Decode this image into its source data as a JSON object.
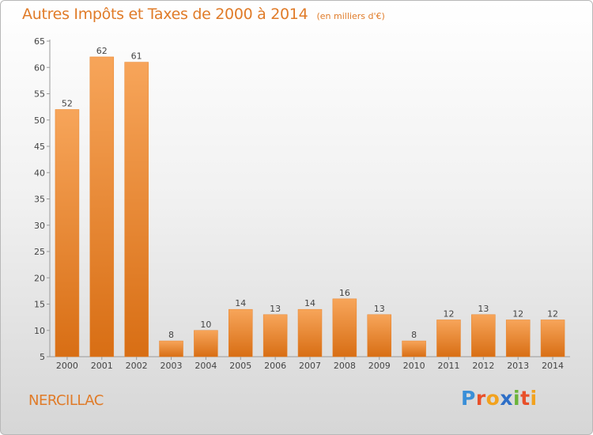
{
  "chart_data": {
    "type": "bar",
    "title": "Autres Impôts et Taxes de 2000 à 2014",
    "subtitle": "(en milliers d'€)",
    "categories": [
      "2000",
      "2001",
      "2002",
      "2003",
      "2004",
      "2005",
      "2006",
      "2007",
      "2008",
      "2009",
      "2010",
      "2011",
      "2012",
      "2013",
      "2014"
    ],
    "values": [
      52,
      62,
      61,
      8,
      10,
      14,
      13,
      14,
      16,
      13,
      8,
      12,
      13,
      12,
      12
    ],
    "ylim": [
      5,
      65
    ],
    "yticks": [
      5,
      10,
      15,
      20,
      25,
      30,
      35,
      40,
      45,
      50,
      55,
      60,
      65
    ],
    "grid": false,
    "bar_color": "#f08a2c"
  },
  "footer": {
    "commune": "NERCILLAC",
    "logo_letters": [
      {
        "ch": "P",
        "color": "#3a8fd8"
      },
      {
        "ch": "r",
        "color": "#e8502a"
      },
      {
        "ch": "o",
        "color": "#f2a21e"
      },
      {
        "ch": "x",
        "color": "#2e6fc7"
      },
      {
        "ch": "i",
        "color": "#6bb43a"
      },
      {
        "ch": "t",
        "color": "#e8502a"
      },
      {
        "ch": "i",
        "color": "#f2a21e"
      }
    ]
  }
}
